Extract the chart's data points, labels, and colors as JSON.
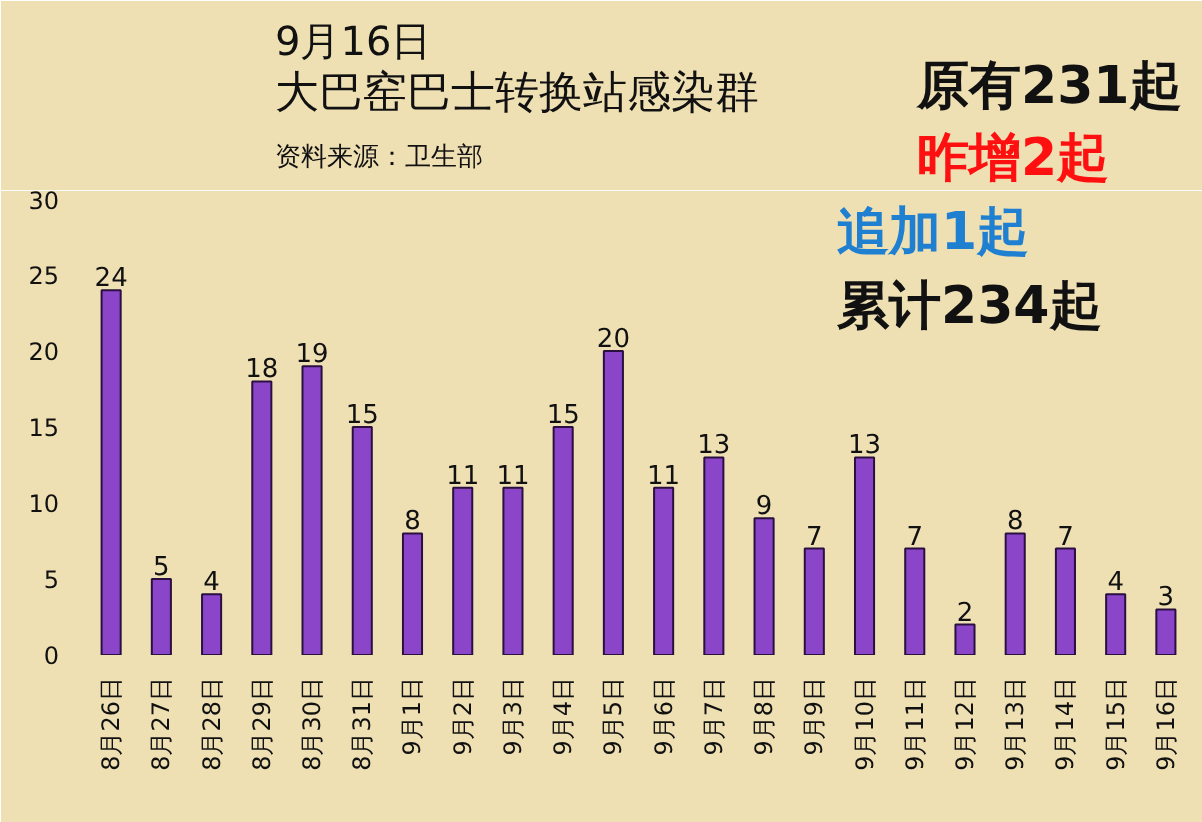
{
  "chart_data": {
    "type": "bar",
    "title": "9月16日",
    "subtitle": "大巴窑巴士转换站感染群",
    "annotations": [
      "资料来源：卫生部",
      "原有231起",
      "昨增2起",
      "追加1起",
      "累计234起"
    ],
    "categories": [
      "8月26日",
      "8月27日",
      "8月28日",
      "8月29日",
      "8月30日",
      "8月31日",
      "9月1日",
      "9月2日",
      "9月3日",
      "9月4日",
      "9月5日",
      "9月6日",
      "9月7日",
      "9月8日",
      "9月9日",
      "9月10日",
      "9月11日",
      "9月12日",
      "9月13日",
      "9月14日",
      "9月15日",
      "9月16日"
    ],
    "values": [
      24,
      5,
      4,
      18,
      19,
      15,
      8,
      11,
      11,
      15,
      20,
      11,
      13,
      9,
      7,
      13,
      7,
      2,
      8,
      7,
      4,
      3
    ],
    "color": "#8a45c8",
    "ylim": [
      0,
      30
    ],
    "yticks": [
      0,
      5,
      10,
      15,
      20,
      25,
      30
    ],
    "grid": false,
    "data_labels": true
  }
}
